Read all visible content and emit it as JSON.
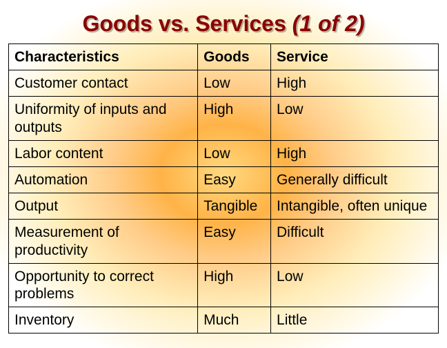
{
  "title_main": "Goods vs. Services ",
  "title_part": "(1 of 2)",
  "columns": [
    "Characteristics",
    "Goods",
    "Service"
  ],
  "rows": [
    [
      "Customer contact",
      "Low",
      "High"
    ],
    [
      "Uniformity of inputs and outputs",
      "High",
      "Low"
    ],
    [
      "Labor content",
      "Low",
      "High"
    ],
    [
      "Automation",
      "Easy",
      "Generally difficult"
    ],
    [
      "Output",
      "Tangible",
      "Intangible, often unique"
    ],
    [
      "Measurement of productivity",
      "Easy",
      "Difficult"
    ],
    [
      "Opportunity to correct problems",
      "High",
      "Low"
    ],
    [
      "Inventory",
      "Much",
      "Little"
    ]
  ],
  "colors": {
    "title_color": "#8b0000",
    "border_color": "#000000",
    "text_color": "#000000"
  },
  "typography": {
    "title_fontsize": 32,
    "cell_fontsize": 21,
    "font_family": "Arial"
  },
  "layout": {
    "col_widths_pct": [
      44,
      17,
      39
    ]
  }
}
